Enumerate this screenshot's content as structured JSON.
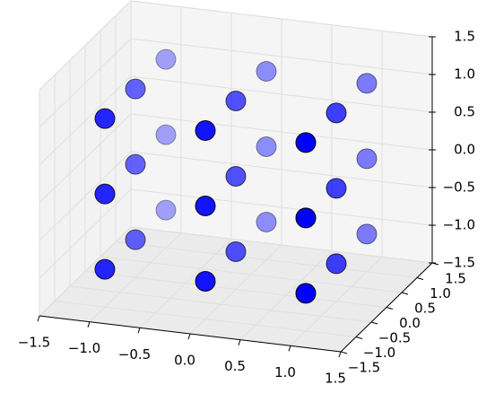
{
  "chart_data": {
    "type": "scatter3d",
    "x": [
      -1,
      -1,
      -1,
      -1,
      -1,
      -1,
      -1,
      -1,
      -1,
      0,
      0,
      0,
      0,
      0,
      0,
      0,
      0,
      0,
      1,
      1,
      1,
      1,
      1,
      1,
      1,
      1,
      1
    ],
    "y": [
      -1,
      -1,
      -1,
      0,
      0,
      0,
      1,
      1,
      1,
      -1,
      -1,
      -1,
      0,
      0,
      0,
      1,
      1,
      1,
      -1,
      -1,
      -1,
      0,
      0,
      0,
      1,
      1,
      1
    ],
    "z": [
      -1,
      0,
      1,
      -1,
      0,
      1,
      -1,
      0,
      1,
      -1,
      0,
      1,
      -1,
      0,
      1,
      -1,
      0,
      1,
      -1,
      0,
      1,
      -1,
      0,
      1,
      -1,
      0,
      1
    ],
    "color": "#0000ff",
    "xlim": [
      -1.5,
      1.5
    ],
    "ylim": [
      -1.5,
      1.5
    ],
    "zlim": [
      -1.5,
      1.5
    ],
    "xticks": [
      {
        "value": -1.5,
        "label": "−1.5"
      },
      {
        "value": -1.0,
        "label": "−1.0"
      },
      {
        "value": -0.5,
        "label": "−0.5"
      },
      {
        "value": 0,
        "label": "0.0"
      },
      0.5,
      {
        "value": 1,
        "label": "1.0"
      },
      1.5
    ],
    "yticks": [
      {
        "value": -1.5,
        "label": "−1.5"
      },
      {
        "value": -1.0,
        "label": "−1.0"
      },
      {
        "value": -0.5,
        "label": "−0.5"
      },
      {
        "value": 0,
        "label": "0.0"
      },
      0.5,
      {
        "value": 1,
        "label": "1.0"
      },
      1.5
    ],
    "zticks": [
      {
        "value": -1.5,
        "label": "−1.5"
      },
      {
        "value": -1.0,
        "label": "−1.0"
      },
      {
        "value": -0.5,
        "label": "−0.5"
      },
      {
        "value": 0,
        "label": "0.0"
      },
      0.5,
      {
        "value": 1,
        "label": "1.0"
      },
      1.5
    ],
    "grid": true
  }
}
